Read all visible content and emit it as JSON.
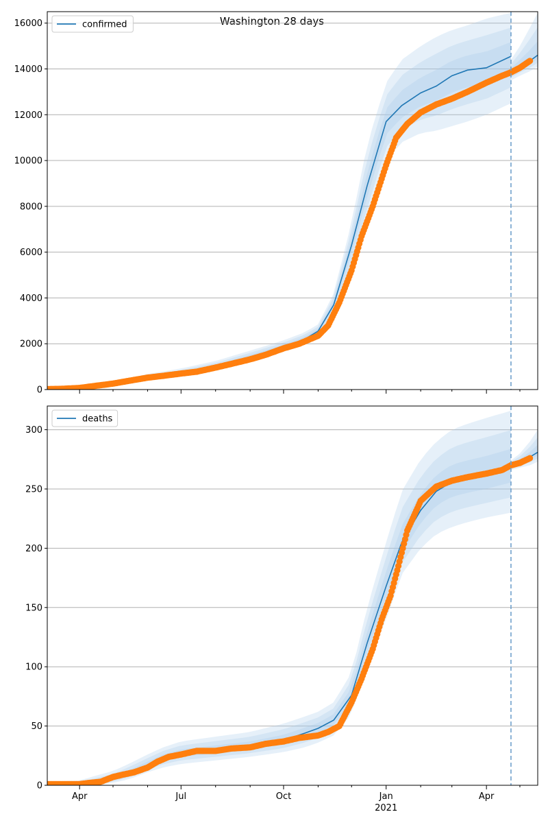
{
  "figure": {
    "suptitle": "Washington 28 days"
  },
  "colors": {
    "forecast_line": "#1f77b4",
    "band": "#a6c8e8",
    "observed_points": "#ff7f0e",
    "grid": "#b0b0b0",
    "cutoff_line": "#6fa0cc"
  },
  "x_axis": {
    "ticks": [
      {
        "label": "Apr",
        "sublabel": "",
        "x": "2020-04-01"
      },
      {
        "label": "Jul",
        "sublabel": "",
        "x": "2020-07-01"
      },
      {
        "label": "Oct",
        "sublabel": "",
        "x": "2020-10-01"
      },
      {
        "label": "Jan",
        "sublabel": "2021",
        "x": "2021-01-01"
      },
      {
        "label": "Apr",
        "sublabel": "",
        "x": "2021-04-01"
      }
    ]
  },
  "chart_data": [
    {
      "type": "line",
      "legend": "confirmed",
      "legend_position": "top-left",
      "grid": "horizontal",
      "xlim": [
        "2020-03-03",
        "2021-05-17"
      ],
      "ylim": [
        0,
        16500
      ],
      "yticks": [
        0,
        2000,
        4000,
        6000,
        8000,
        10000,
        12000,
        14000,
        16000
      ],
      "forecast_cutoff": "2021-04-23",
      "series": [
        {
          "name": "confirmed",
          "role": "forecast",
          "x": [
            "2020-03-03",
            "2020-04-01",
            "2020-05-01",
            "2020-06-01",
            "2020-07-01",
            "2020-08-01",
            "2020-09-01",
            "2020-10-01",
            "2020-10-20",
            "2020-11-01",
            "2020-11-15",
            "2020-12-01",
            "2020-12-15",
            "2021-01-01",
            "2021-01-15",
            "2021-02-01",
            "2021-02-15",
            "2021-03-01",
            "2021-03-15",
            "2021-04-01",
            "2021-04-23"
          ],
          "y": [
            30,
            60,
            250,
            520,
            720,
            1000,
            1420,
            1870,
            2200,
            2550,
            3700,
            6300,
            8900,
            11700,
            12400,
            12950,
            13250,
            13700,
            13950,
            14050,
            14550
          ],
          "lower_outer": [
            30,
            40,
            180,
            400,
            580,
            820,
            1200,
            1650,
            1950,
            2300,
            3300,
            5200,
            7400,
            10000,
            10800,
            11200,
            11300,
            11500,
            11700,
            12000,
            12500
          ],
          "upper_outer": [
            30,
            90,
            350,
            680,
            920,
            1250,
            1700,
            2150,
            2500,
            2850,
            4200,
            7300,
            10700,
            13400,
            14400,
            15000,
            15400,
            15700,
            15900,
            16200,
            16450
          ]
        },
        {
          "name": "confirmed",
          "role": "post-cutoff forecast",
          "x": [
            "2021-04-23",
            "2021-05-01",
            "2021-05-10",
            "2021-05-17"
          ],
          "y": [
            13850,
            14100,
            14350,
            14600
          ],
          "lower_outer": [
            13500,
            13700,
            13900,
            14100
          ],
          "upper_outer": [
            14400,
            15000,
            15800,
            16450
          ]
        },
        {
          "name": "observed",
          "role": "observed",
          "x": [
            "2020-03-03",
            "2020-03-15",
            "2020-04-01",
            "2020-04-15",
            "2020-05-01",
            "2020-05-15",
            "2020-06-01",
            "2020-06-15",
            "2020-07-01",
            "2020-07-15",
            "2020-08-01",
            "2020-08-15",
            "2020-09-01",
            "2020-09-15",
            "2020-10-01",
            "2020-10-15",
            "2020-11-01",
            "2020-11-10",
            "2020-11-20",
            "2020-12-01",
            "2020-12-10",
            "2020-12-20",
            "2021-01-01",
            "2021-01-10",
            "2021-01-20",
            "2021-02-01",
            "2021-02-15",
            "2021-03-01",
            "2021-03-15",
            "2021-04-01",
            "2021-04-15",
            "2021-04-23",
            "2021-05-01",
            "2021-05-10"
          ],
          "y": [
            20,
            30,
            70,
            160,
            260,
            380,
            520,
            600,
            700,
            780,
            960,
            1120,
            1320,
            1520,
            1800,
            2000,
            2350,
            2800,
            3800,
            5200,
            6700,
            8000,
            9800,
            11000,
            11600,
            12100,
            12450,
            12700,
            13000,
            13400,
            13700,
            13850,
            14050,
            14350
          ]
        }
      ]
    },
    {
      "type": "line",
      "legend": "deaths",
      "legend_position": "top-left",
      "grid": "horizontal",
      "xlim": [
        "2020-03-03",
        "2021-05-17"
      ],
      "ylim": [
        0,
        320
      ],
      "yticks": [
        0,
        50,
        100,
        150,
        200,
        250,
        300
      ],
      "forecast_cutoff": "2021-04-23",
      "series": [
        {
          "name": "deaths",
          "role": "forecast",
          "x": [
            "2020-03-03",
            "2020-04-01",
            "2020-04-15",
            "2020-05-01",
            "2020-05-15",
            "2020-06-01",
            "2020-06-15",
            "2020-07-01",
            "2020-08-01",
            "2020-09-01",
            "2020-10-01",
            "2020-10-20",
            "2020-11-01",
            "2020-11-15",
            "2020-12-01",
            "2020-12-15",
            "2021-01-01",
            "2021-01-15",
            "2021-02-01",
            "2021-02-15",
            "2021-03-01",
            "2021-03-15",
            "2021-04-01",
            "2021-04-23"
          ],
          "y": [
            1,
            1,
            2,
            5,
            10,
            17,
            23,
            27,
            30,
            33,
            38,
            44,
            48,
            55,
            76,
            120,
            168,
            205,
            232,
            248,
            256,
            259,
            262,
            268
          ],
          "lower_outer": [
            0,
            0,
            0,
            2,
            5,
            11,
            15,
            18,
            21,
            24,
            28,
            32,
            36,
            42,
            60,
            100,
            140,
            178,
            200,
            212,
            218,
            222,
            226,
            230
          ],
          "upper_outer": [
            3,
            4,
            8,
            12,
            18,
            26,
            32,
            37,
            41,
            45,
            52,
            58,
            62,
            70,
            95,
            150,
            205,
            248,
            275,
            290,
            300,
            305,
            310,
            316
          ]
        },
        {
          "name": "deaths",
          "role": "post-cutoff forecast",
          "x": [
            "2021-04-23",
            "2021-05-01",
            "2021-05-10",
            "2021-05-17"
          ],
          "y": [
            270,
            273,
            277,
            281
          ],
          "lower_outer": [
            266,
            268,
            270,
            273
          ],
          "upper_outer": [
            274,
            280,
            290,
            300
          ]
        },
        {
          "name": "observed",
          "role": "observed",
          "x": [
            "2020-03-03",
            "2020-03-20",
            "2020-04-01",
            "2020-04-10",
            "2020-04-20",
            "2020-05-01",
            "2020-05-10",
            "2020-05-20",
            "2020-06-01",
            "2020-06-10",
            "2020-06-20",
            "2020-07-01",
            "2020-07-15",
            "2020-08-01",
            "2020-08-15",
            "2020-09-01",
            "2020-09-15",
            "2020-10-01",
            "2020-10-15",
            "2020-11-01",
            "2020-11-10",
            "2020-11-20",
            "2020-12-01",
            "2020-12-10",
            "2020-12-20",
            "2020-12-28",
            "2021-01-05",
            "2021-01-12",
            "2021-01-20",
            "2021-02-01",
            "2021-02-15",
            "2021-03-01",
            "2021-03-15",
            "2021-04-01",
            "2021-04-15",
            "2021-04-23",
            "2021-05-01",
            "2021-05-10"
          ],
          "y": [
            1,
            1,
            1,
            2,
            3,
            7,
            9,
            11,
            15,
            20,
            24,
            26,
            29,
            29,
            31,
            32,
            35,
            37,
            40,
            42,
            45,
            50,
            70,
            90,
            115,
            140,
            160,
            185,
            215,
            240,
            252,
            257,
            260,
            263,
            266,
            270,
            272,
            276
          ]
        }
      ]
    }
  ]
}
